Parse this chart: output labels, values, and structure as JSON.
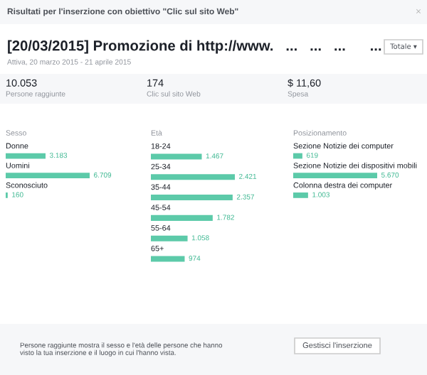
{
  "chart_data": [
    {
      "type": "other",
      "title": "Risultati per l'inserzione con obiettivo \"Clic sul sito Web\"",
      "subtitle": "[20/03/2015] Promozione di http://www.   ...   ...   ...      ...",
      "annotations": [
        "×",
        "Attiva, 20 marzo 2015 - 21 aprile 2015",
        "Totale ▾",
        "10.053",
        "Persone raggiunte",
        "174",
        "Clic sul sito Web",
        "$ 11,60",
        "Spesa",
        "Persone raggiunte mostra il sesso e l'età delle persone che hanno\nvisto la tua inserzione e il luogo in cui l'hanno vista.",
        "Gestisci l'inserzione"
      ]
    },
    {
      "type": "bar",
      "orientation": "horizontal",
      "title": "Sesso",
      "color": "#5ccaa9",
      "categories": [
        "Donne",
        "Uomini",
        "Sconosciuto"
      ],
      "values": [
        3183,
        6709,
        160
      ],
      "value_labels": [
        "3.183",
        "6.709",
        "160"
      ]
    },
    {
      "type": "bar",
      "orientation": "horizontal",
      "title": "Età",
      "color": "#5ccaa9",
      "categories": [
        "18-24",
        "25-34",
        "35-44",
        "45-54",
        "55-64",
        "65+"
      ],
      "values": [
        1467,
        2421,
        2357,
        1782,
        1058,
        974
      ],
      "value_labels": [
        "1.467",
        "2.421",
        "2.357",
        "1.782",
        "1.058",
        "974"
      ]
    },
    {
      "type": "bar",
      "orientation": "horizontal",
      "title": "Posizionamento",
      "color": "#5ccaa9",
      "categories": [
        "Sezione Notizie dei computer",
        "Sezione Notizie dei dispositivi mobili",
        "Colonna destra dei computer"
      ],
      "values": [
        619,
        5670,
        1003
      ],
      "value_labels": [
        "619",
        "5.670",
        "1.003"
      ]
    }
  ]
}
